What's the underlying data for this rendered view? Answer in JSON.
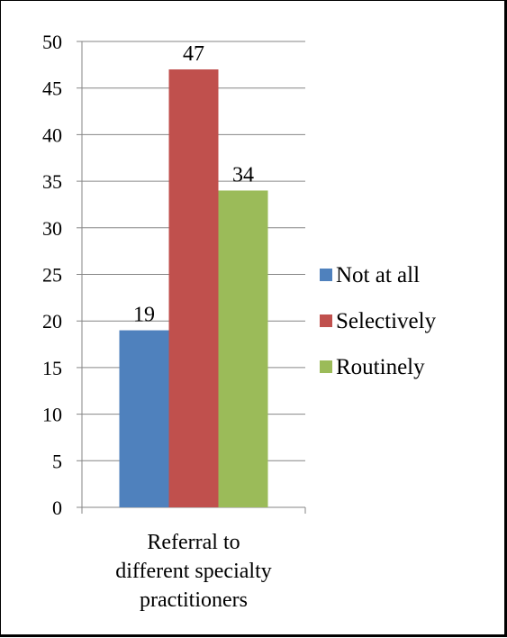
{
  "chart_data": {
    "type": "bar",
    "categories": [
      "Referral to\ndifferent specialty\npractitioners"
    ],
    "series": [
      {
        "name": "Not at all",
        "values": [
          19
        ],
        "color": "#4F81BD"
      },
      {
        "name": "Selectively",
        "values": [
          47
        ],
        "color": "#C0504D"
      },
      {
        "name": "Routinely",
        "values": [
          34
        ],
        "color": "#9BBB59"
      }
    ],
    "ylim": [
      0,
      50
    ],
    "yticks": [
      0,
      5,
      10,
      15,
      20,
      25,
      30,
      35,
      40,
      45,
      50
    ],
    "grid": true,
    "legend": "right"
  }
}
